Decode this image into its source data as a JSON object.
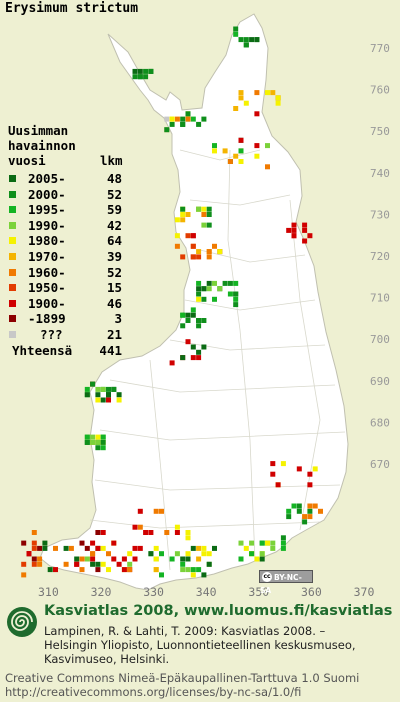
{
  "map": {
    "title": "Erysimum strictum",
    "y_ticks": [
      "770",
      "760",
      "750",
      "740",
      "730",
      "720",
      "710",
      "700",
      "690",
      "680",
      "670"
    ],
    "x_ticks": [
      "310",
      "320",
      "330",
      "340",
      "350",
      "360",
      "370"
    ],
    "colors": {
      "land": "#ffffff",
      "background": "#eef0d2",
      "border": "#c8c8b8",
      "grid": "#e6e6e6"
    }
  },
  "legend": {
    "header_lines": [
      "Uusimman",
      "havainnon",
      "vuosi"
    ],
    "count_header": "lkm",
    "items": [
      {
        "label": "2005-",
        "count": "48",
        "color": "#0b6b14"
      },
      {
        "label": "2000-",
        "count": "52",
        "color": "#0f8f1c"
      },
      {
        "label": "1995-",
        "count": "59",
        "color": "#14b424"
      },
      {
        "label": "1990-",
        "count": "42",
        "color": "#7bd23a"
      },
      {
        "label": "1980-",
        "count": "64",
        "color": "#f5f200"
      },
      {
        "label": "1970-",
        "count": "39",
        "color": "#f4b400"
      },
      {
        "label": "1960-",
        "count": "52",
        "color": "#f07a00"
      },
      {
        "label": "1950-",
        "count": "15",
        "color": "#e23c00"
      },
      {
        "label": "1900-",
        "count": "46",
        "color": "#d00000"
      },
      {
        "label": "-1899",
        "count": "3",
        "color": "#8c0000"
      },
      {
        "label": "???",
        "count": "21",
        "color": "#c8c8c8"
      }
    ],
    "total_label": "Yhteensä",
    "total_count": "441"
  },
  "license_badge": {
    "text": "BY-NC-SA",
    "icon": "cc-icon"
  },
  "footer": {
    "title": "Kasviatlas 2008, www.luomus.fi/kasviatlas",
    "citation_lines": [
      "Lampinen, R. & Lahti, T. 2009: Kasviatlas 2008. –",
      "Helsingin Yliopisto, Luonnontieteellinen keskusmuseo,",
      "Kasvimuseo, Helsinki."
    ],
    "license_lines": [
      "Creative Commons Nimeä-Epäkaupallinen-Tarttuva 1.0 Suomi",
      "http://creativecommons.org/licenses/by-nc-sa/1.0/fi"
    ],
    "logo_icon": "spiral-logo-icon"
  }
}
